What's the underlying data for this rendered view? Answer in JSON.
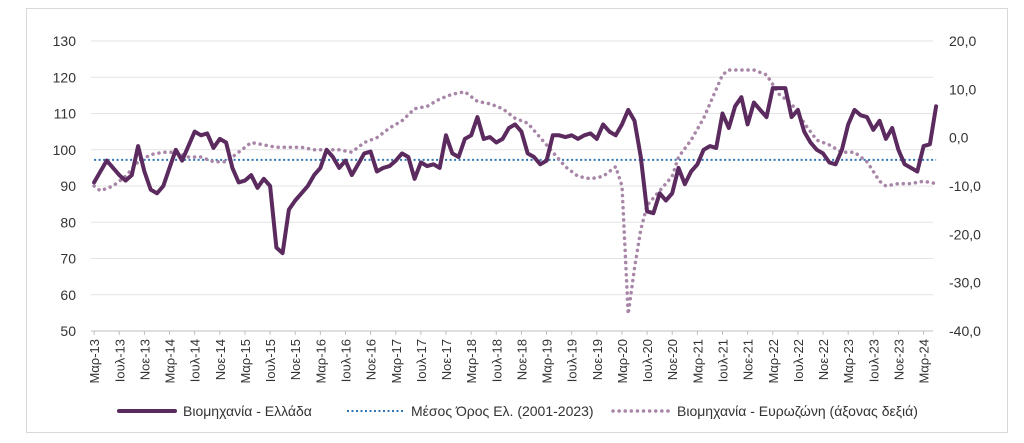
{
  "chart_data": {
    "type": "line",
    "title": "",
    "xlabel": "",
    "ylabel": "",
    "y_left_lim": [
      50,
      130
    ],
    "y_left_ticks": [
      "50",
      "60",
      "70",
      "80",
      "90",
      "100",
      "110",
      "120",
      "130"
    ],
    "y_right_lim": [
      -40,
      20
    ],
    "y_right_ticks": [
      "-40,0",
      "-30,0",
      "-20,0",
      "-10,0",
      "0,0",
      "10,0",
      "20,0"
    ],
    "x_start": "2013-03",
    "x_end": "2024-03",
    "x_tick_labels": [
      "Μαρ-13",
      "Ιουλ-13",
      "Νοε-13",
      "Μαρ-14",
      "Ιουλ-14",
      "Νοε-14",
      "Μαρ-15",
      "Ιουλ-15",
      "Νοε-15",
      "Μαρ-16",
      "Ιουλ-16",
      "Νοε-16",
      "Μαρ-17",
      "Ιουλ-17",
      "Νοε-17",
      "Μαρ-18",
      "Ιουλ-18",
      "Νοε-18",
      "Μαρ-19",
      "Ιουλ-19",
      "Νοε-19",
      "Μαρ-20",
      "Ιουλ-20",
      "Νοε-20",
      "Μαρ-21",
      "Ιουλ-21",
      "Νοε-21",
      "Μαρ-22",
      "Ιουλ-22",
      "Νοε-22",
      "Μαρ-23",
      "Ιουλ-23",
      "Νοε-23",
      "Μαρ-24"
    ],
    "grid": true,
    "legend_position": "bottom",
    "series": [
      {
        "name": "Βιομηχανία  - Ελλάδα",
        "axis": "left",
        "style": "solid",
        "color": "#5b2a5e",
        "points": [
          [
            "2013-03",
            91
          ],
          [
            "2013-05",
            97
          ],
          [
            "2013-07",
            93
          ],
          [
            "2013-08",
            91.5
          ],
          [
            "2013-09",
            93
          ],
          [
            "2013-10",
            101
          ],
          [
            "2013-11",
            94
          ],
          [
            "2013-12",
            89
          ],
          [
            "2014-01",
            88
          ],
          [
            "2014-02",
            90
          ],
          [
            "2014-03",
            95
          ],
          [
            "2014-04",
            100
          ],
          [
            "2014-05",
            97
          ],
          [
            "2014-06",
            101
          ],
          [
            "2014-07",
            105
          ],
          [
            "2014-08",
            104
          ],
          [
            "2014-09",
            104.5
          ],
          [
            "2014-10",
            100.5
          ],
          [
            "2014-11",
            103
          ],
          [
            "2014-12",
            102
          ],
          [
            "2015-01",
            95
          ],
          [
            "2015-02",
            91
          ],
          [
            "2015-03",
            91.5
          ],
          [
            "2015-04",
            93
          ],
          [
            "2015-05",
            89.5
          ],
          [
            "2015-06",
            92
          ],
          [
            "2015-07",
            90
          ],
          [
            "2015-08",
            73
          ],
          [
            "2015-09",
            71.5
          ],
          [
            "2015-10",
            83.5
          ],
          [
            "2015-11",
            86
          ],
          [
            "2015-12",
            88
          ],
          [
            "2016-01",
            90
          ],
          [
            "2016-02",
            93
          ],
          [
            "2016-03",
            95
          ],
          [
            "2016-04",
            100
          ],
          [
            "2016-05",
            98
          ],
          [
            "2016-06",
            95
          ],
          [
            "2016-07",
            97
          ],
          [
            "2016-08",
            93
          ],
          [
            "2016-09",
            96
          ],
          [
            "2016-10",
            99
          ],
          [
            "2016-11",
            99.5
          ],
          [
            "2016-12",
            94
          ],
          [
            "2017-01",
            95
          ],
          [
            "2017-02",
            95.5
          ],
          [
            "2017-03",
            97
          ],
          [
            "2017-04",
            99
          ],
          [
            "2017-05",
            98
          ],
          [
            "2017-06",
            92
          ],
          [
            "2017-07",
            96.5
          ],
          [
            "2017-08",
            95.5
          ],
          [
            "2017-09",
            96
          ],
          [
            "2017-10",
            95
          ],
          [
            "2017-11",
            104
          ],
          [
            "2017-12",
            99
          ],
          [
            "2018-01",
            98
          ],
          [
            "2018-02",
            103
          ],
          [
            "2018-03",
            104
          ],
          [
            "2018-04",
            109
          ],
          [
            "2018-05",
            103
          ],
          [
            "2018-06",
            103.5
          ],
          [
            "2018-07",
            102
          ],
          [
            "2018-08",
            103
          ],
          [
            "2018-09",
            106
          ],
          [
            "2018-10",
            107
          ],
          [
            "2018-11",
            105
          ],
          [
            "2018-12",
            99
          ],
          [
            "2019-01",
            98
          ],
          [
            "2019-02",
            96
          ],
          [
            "2019-03",
            97
          ],
          [
            "2019-04",
            104
          ],
          [
            "2019-05",
            104
          ],
          [
            "2019-06",
            103.5
          ],
          [
            "2019-07",
            104
          ],
          [
            "2019-08",
            103
          ],
          [
            "2019-09",
            104
          ],
          [
            "2019-10",
            104.5
          ],
          [
            "2019-11",
            103
          ],
          [
            "2019-12",
            107
          ],
          [
            "2020-01",
            105
          ],
          [
            "2020-02",
            104
          ],
          [
            "2020-03",
            107
          ],
          [
            "2020-04",
            111
          ],
          [
            "2020-05",
            108
          ],
          [
            "2020-06",
            98
          ],
          [
            "2020-07",
            83
          ],
          [
            "2020-08",
            82.5
          ],
          [
            "2020-09",
            88
          ],
          [
            "2020-10",
            86
          ],
          [
            "2020-11",
            88
          ],
          [
            "2020-12",
            95
          ],
          [
            "2021-01",
            90.5
          ],
          [
            "2021-02",
            94
          ],
          [
            "2021-03",
            96
          ],
          [
            "2021-04",
            100
          ],
          [
            "2021-05",
            101
          ],
          [
            "2021-06",
            100.5
          ],
          [
            "2021-07",
            110
          ],
          [
            "2021-08",
            106
          ],
          [
            "2021-09",
            112
          ],
          [
            "2021-10",
            114.5
          ],
          [
            "2021-11",
            107
          ],
          [
            "2021-12",
            113
          ],
          [
            "2022-01",
            111
          ],
          [
            "2022-02",
            109
          ],
          [
            "2022-03",
            117
          ],
          [
            "2022-04",
            117
          ],
          [
            "2022-05",
            117
          ],
          [
            "2022-06",
            109
          ],
          [
            "2022-07",
            111
          ],
          [
            "2022-08",
            105
          ],
          [
            "2022-09",
            102
          ],
          [
            "2022-10",
            100
          ],
          [
            "2022-11",
            99
          ],
          [
            "2022-12",
            96.5
          ],
          [
            "2023-01",
            96
          ],
          [
            "2023-02",
            100
          ],
          [
            "2023-03",
            107
          ],
          [
            "2023-04",
            111
          ],
          [
            "2023-05",
            109.5
          ],
          [
            "2023-06",
            109
          ],
          [
            "2023-07",
            105.5
          ],
          [
            "2023-08",
            108
          ],
          [
            "2023-09",
            103
          ],
          [
            "2023-10",
            106
          ],
          [
            "2023-11",
            100
          ],
          [
            "2023-12",
            96
          ],
          [
            "2024-01",
            95
          ],
          [
            "2024-02",
            94
          ],
          [
            "2024-03",
            101
          ],
          [
            "2024-04",
            101.5
          ],
          [
            "2024-05",
            112
          ]
        ]
      },
      {
        "name": "Μέσος Όρος Ελ. (2001-2023)",
        "axis": "left",
        "style": "dotted",
        "color": "#2e75b6",
        "points": [
          [
            "2013-03",
            97.2
          ],
          [
            "2024-05",
            97.2
          ]
        ]
      },
      {
        "name": "Βιομηχανία - Ευρωζώνη (άξονας δεξιά)",
        "axis": "right",
        "style": "dotted",
        "color": "#a886a8",
        "points": [
          [
            "2013-03",
            -10
          ],
          [
            "2013-04",
            -11
          ],
          [
            "2013-06",
            -10
          ],
          [
            "2013-08",
            -8
          ],
          [
            "2013-10",
            -5
          ],
          [
            "2013-12",
            -3.5
          ],
          [
            "2014-02",
            -3
          ],
          [
            "2014-04",
            -3
          ],
          [
            "2014-06",
            -4
          ],
          [
            "2014-08",
            -4
          ],
          [
            "2014-10",
            -5
          ],
          [
            "2014-12",
            -5
          ],
          [
            "2015-02",
            -3
          ],
          [
            "2015-04",
            -1
          ],
          [
            "2015-06",
            -1.5
          ],
          [
            "2015-08",
            -2
          ],
          [
            "2015-10",
            -2
          ],
          [
            "2015-12",
            -2
          ],
          [
            "2016-02",
            -2.5
          ],
          [
            "2016-04",
            -2.5
          ],
          [
            "2016-06",
            -2.5
          ],
          [
            "2016-08",
            -3
          ],
          [
            "2016-10",
            -1
          ],
          [
            "2016-12",
            0
          ],
          [
            "2017-02",
            2
          ],
          [
            "2017-04",
            3.5
          ],
          [
            "2017-06",
            6
          ],
          [
            "2017-08",
            6.5
          ],
          [
            "2017-10",
            8
          ],
          [
            "2017-12",
            9
          ],
          [
            "2018-02",
            9.5
          ],
          [
            "2018-04",
            7.5
          ],
          [
            "2018-06",
            7
          ],
          [
            "2018-08",
            6
          ],
          [
            "2018-10",
            4
          ],
          [
            "2018-12",
            3
          ],
          [
            "2019-02",
            0
          ],
          [
            "2019-04",
            -3
          ],
          [
            "2019-06",
            -6
          ],
          [
            "2019-08",
            -8
          ],
          [
            "2019-10",
            -8.5
          ],
          [
            "2019-12",
            -8
          ],
          [
            "2020-02",
            -6
          ],
          [
            "2020-03",
            -10
          ],
          [
            "2020-04",
            -36.5
          ],
          [
            "2020-05",
            -27
          ],
          [
            "2020-06",
            -19
          ],
          [
            "2020-07",
            -14
          ],
          [
            "2020-09",
            -11
          ],
          [
            "2020-11",
            -8
          ],
          [
            "2020-12",
            -4
          ],
          [
            "2021-02",
            -0.5
          ],
          [
            "2021-04",
            4
          ],
          [
            "2021-06",
            10
          ],
          [
            "2021-07",
            13
          ],
          [
            "2021-08",
            14
          ],
          [
            "2021-10",
            14
          ],
          [
            "2021-12",
            14
          ],
          [
            "2022-02",
            13
          ],
          [
            "2022-04",
            9
          ],
          [
            "2022-06",
            7
          ],
          [
            "2022-08",
            3
          ],
          [
            "2022-10",
            -0.5
          ],
          [
            "2022-12",
            -1.5
          ],
          [
            "2023-02",
            -3
          ],
          [
            "2023-04",
            -3
          ],
          [
            "2023-06",
            -5
          ],
          [
            "2023-08",
            -9
          ],
          [
            "2023-09",
            -10
          ],
          [
            "2023-11",
            -9.5
          ],
          [
            "2024-01",
            -9.5
          ],
          [
            "2024-03",
            -9
          ],
          [
            "2024-05",
            -9.5
          ]
        ]
      }
    ]
  }
}
